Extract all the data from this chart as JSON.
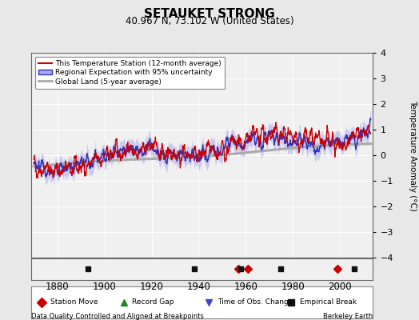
{
  "title": "SETAUKET STRONG",
  "subtitle": "40.967 N, 73.102 W (United States)",
  "ylabel": "Temperature Anomaly (°C)",
  "xlabel_note": "Data Quality Controlled and Aligned at Breakpoints",
  "source_note": "Berkeley Earth",
  "xlim": [
    1869,
    2014
  ],
  "ylim": [
    -4,
    4
  ],
  "yticks": [
    -4,
    -3,
    -2,
    -1,
    0,
    1,
    2,
    3,
    4
  ],
  "xticks": [
    1880,
    1900,
    1920,
    1940,
    1960,
    1980,
    2000
  ],
  "bg_color": "#e8e8e8",
  "plot_bg_color": "#f0f0f0",
  "grid_color": "#ffffff",
  "station_moves": [
    1957,
    1961,
    1999
  ],
  "empirical_breaks": [
    1893,
    1938,
    1958,
    1975,
    2006
  ],
  "marker_legend": [
    {
      "marker": "D",
      "color": "#cc0000",
      "label": "Station Move"
    },
    {
      "marker": "^",
      "color": "#228822",
      "label": "Record Gap"
    },
    {
      "marker": "v",
      "color": "#4444cc",
      "label": "Time of Obs. Change"
    },
    {
      "marker": "s",
      "color": "#111111",
      "label": "Empirical Break"
    }
  ],
  "seed": 42
}
